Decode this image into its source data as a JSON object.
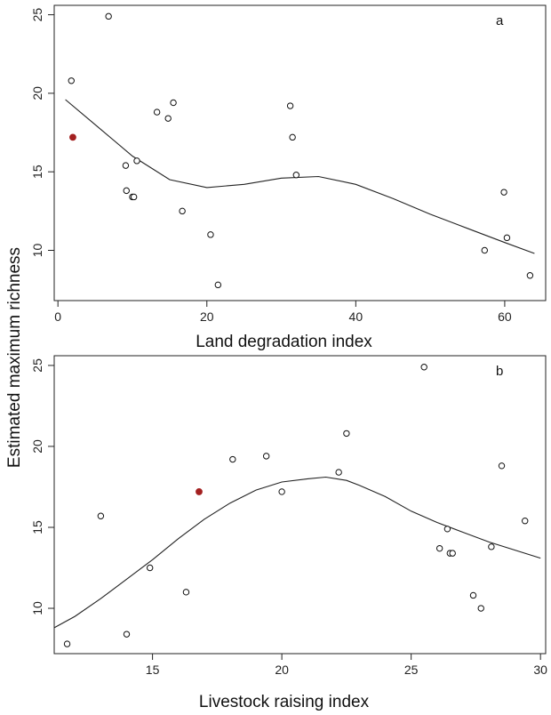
{
  "shared_ylabel": "Estimated  maximum richness",
  "chart_data": [
    {
      "type": "scatter",
      "panel": "a",
      "xlabel": "Land degradation index",
      "ylabel": "Estimated  maximum richness",
      "xlim": [
        -0.5,
        65.5
      ],
      "ylim": [
        6.8,
        25.6
      ],
      "xticks": [
        0,
        20,
        40,
        60
      ],
      "yticks": [
        10,
        15,
        20,
        25
      ],
      "grid": false,
      "highlight_color": "#a32020",
      "points": [
        {
          "x": 6.8,
          "y": 24.9
        },
        {
          "x": 1.8,
          "y": 20.8
        },
        {
          "x": 15.5,
          "y": 19.4
        },
        {
          "x": 31.2,
          "y": 19.2
        },
        {
          "x": 13.3,
          "y": 18.8
        },
        {
          "x": 14.8,
          "y": 18.4
        },
        {
          "x": 31.5,
          "y": 17.2
        },
        {
          "x": 10.6,
          "y": 15.7
        },
        {
          "x": 9.1,
          "y": 15.4
        },
        {
          "x": 32.0,
          "y": 14.8
        },
        {
          "x": 9.2,
          "y": 13.8
        },
        {
          "x": 10.0,
          "y": 13.4
        },
        {
          "x": 10.2,
          "y": 13.4
        },
        {
          "x": 59.9,
          "y": 13.7
        },
        {
          "x": 16.7,
          "y": 12.5
        },
        {
          "x": 20.5,
          "y": 11.0
        },
        {
          "x": 60.3,
          "y": 10.8
        },
        {
          "x": 57.3,
          "y": 10.0
        },
        {
          "x": 63.4,
          "y": 8.4
        },
        {
          "x": 21.5,
          "y": 7.8
        }
      ],
      "highlight_points": [
        {
          "x": 2.0,
          "y": 17.2
        }
      ],
      "fit_curve": {
        "x": [
          1,
          5,
          10,
          15,
          20,
          25,
          30,
          35,
          40,
          45,
          50,
          55,
          60,
          64
        ],
        "y": [
          19.6,
          18.0,
          16.0,
          14.5,
          14.0,
          14.2,
          14.6,
          14.7,
          14.2,
          13.3,
          12.3,
          11.4,
          10.5,
          9.8
        ]
      }
    },
    {
      "type": "scatter",
      "panel": "b",
      "xlabel": "Livestock raising index",
      "ylabel": "Estimated  maximum richness",
      "xlim": [
        11.2,
        30.2
      ],
      "ylim": [
        7.2,
        25.6
      ],
      "xticks": [
        15,
        20,
        25,
        30
      ],
      "yticks": [
        10,
        15,
        20,
        25
      ],
      "grid": false,
      "highlight_color": "#a32020",
      "points": [
        {
          "x": 25.5,
          "y": 24.9
        },
        {
          "x": 22.5,
          "y": 20.8
        },
        {
          "x": 19.4,
          "y": 19.4
        },
        {
          "x": 18.1,
          "y": 19.2
        },
        {
          "x": 28.5,
          "y": 18.8
        },
        {
          "x": 22.2,
          "y": 18.4
        },
        {
          "x": 20.0,
          "y": 17.2
        },
        {
          "x": 13.0,
          "y": 15.7
        },
        {
          "x": 29.4,
          "y": 15.4
        },
        {
          "x": 26.4,
          "y": 14.9
        },
        {
          "x": 26.1,
          "y": 13.7
        },
        {
          "x": 28.1,
          "y": 13.8
        },
        {
          "x": 26.5,
          "y": 13.4
        },
        {
          "x": 26.6,
          "y": 13.4
        },
        {
          "x": 14.9,
          "y": 12.5
        },
        {
          "x": 16.3,
          "y": 11.0
        },
        {
          "x": 27.4,
          "y": 10.8
        },
        {
          "x": 27.7,
          "y": 10.0
        },
        {
          "x": 14.0,
          "y": 8.4
        },
        {
          "x": 11.7,
          "y": 7.8
        }
      ],
      "highlight_points": [
        {
          "x": 16.8,
          "y": 17.2
        }
      ],
      "fit_curve": {
        "x": [
          11.2,
          12,
          13,
          14,
          15,
          16,
          17,
          18,
          19,
          20,
          21,
          21.7,
          22.5,
          23,
          24,
          25,
          26,
          27,
          28,
          29,
          30
        ],
        "y": [
          8.8,
          9.5,
          10.6,
          11.8,
          13.0,
          14.3,
          15.5,
          16.5,
          17.3,
          17.8,
          18.0,
          18.1,
          17.9,
          17.6,
          16.9,
          16.0,
          15.3,
          14.7,
          14.1,
          13.6,
          13.1
        ]
      }
    }
  ]
}
